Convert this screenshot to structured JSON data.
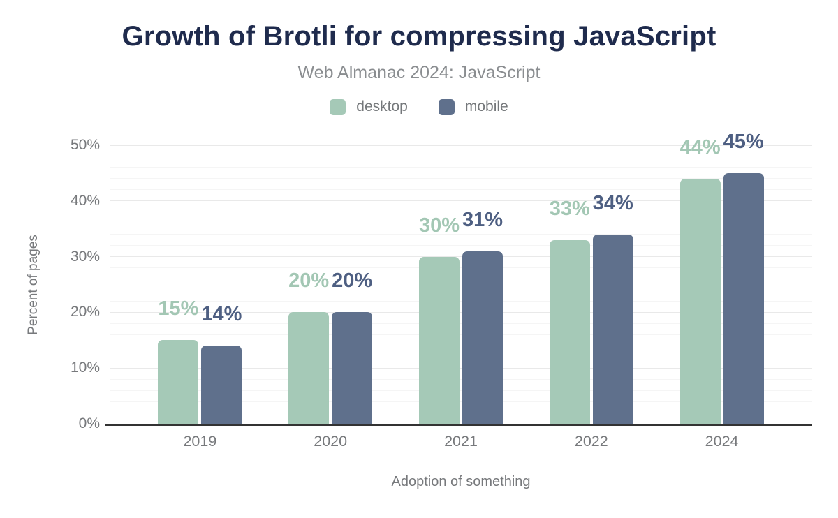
{
  "chart_data": {
    "type": "bar",
    "title": "Growth of Brotli for compressing JavaScript",
    "subtitle": "Web Almanac 2024: JavaScript",
    "xlabel": "Adoption of something",
    "ylabel": "Percent of pages",
    "categories": [
      "2019",
      "2020",
      "2021",
      "2022",
      "2024"
    ],
    "series": [
      {
        "name": "desktop",
        "color": "#a5c9b7",
        "label_color": "#a3c7b4",
        "values": [
          15,
          20,
          30,
          33,
          44
        ],
        "labels": [
          "15%",
          "20%",
          "30%",
          "33%",
          "44%"
        ]
      },
      {
        "name": "mobile",
        "color": "#5f708c",
        "label_color": "#4e5f82",
        "values": [
          14,
          20,
          31,
          34,
          45
        ],
        "labels": [
          "14%",
          "20%",
          "31%",
          "34%",
          "45%"
        ]
      }
    ],
    "ylim": [
      0,
      50
    ],
    "yticks": [
      "0%",
      "10%",
      "20%",
      "30%",
      "40%",
      "50%"
    ],
    "grid": {
      "major_step": 10,
      "minor_step": 2
    },
    "legend_position": "top",
    "theme": {
      "title_color": "#1f2b4d",
      "subtitle_color": "#8a8d90",
      "axis_text_color": "#77797c",
      "axis_line_color": "#333333",
      "grid_major_color": "#e9e9e9",
      "grid_minor_color": "#f5f5f5",
      "background": "#ffffff"
    }
  }
}
